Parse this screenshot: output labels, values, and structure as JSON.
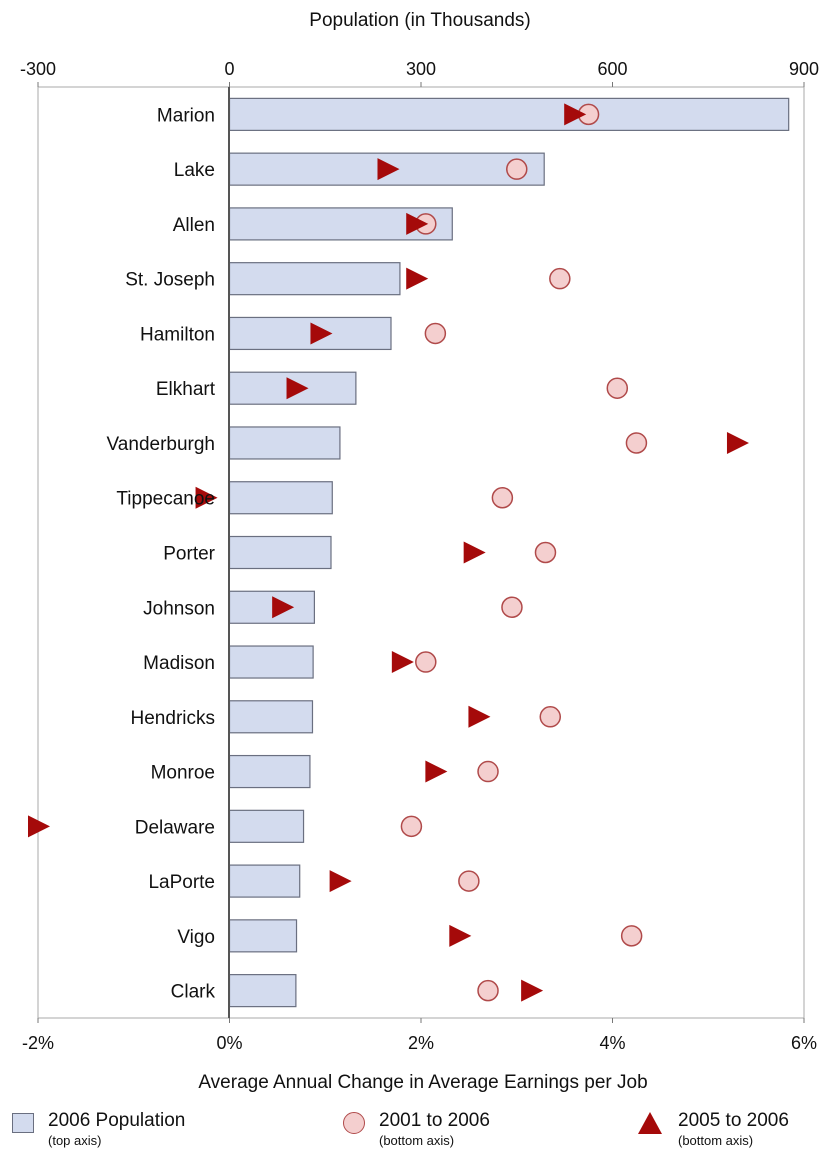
{
  "chart_data": {
    "type": "bar",
    "top_axis": {
      "label": "Population (in Thousands)",
      "range": [
        -300,
        900
      ],
      "ticks": [
        "-300",
        "0",
        "300",
        "600",
        "900"
      ]
    },
    "bottom_axis": {
      "label": "Average Annual Change in Average Earnings per Job",
      "range": [
        -2,
        6
      ],
      "ticks": [
        "-2%",
        "0%",
        "2%",
        "4%",
        "6%"
      ]
    },
    "categories": [
      "Marion",
      "Lake",
      "Allen",
      "St. Joseph",
      "Hamilton",
      "Elkhart",
      "Vanderburgh",
      "Tippecanoe",
      "Porter",
      "Johnson",
      "Madison",
      "Hendricks",
      "Monroe",
      "Delaware",
      "LaPorte",
      "Vigo",
      "Clark"
    ],
    "series": [
      {
        "name": "2006 Population",
        "axis": "top",
        "type": "bar",
        "values": [
          876,
          493,
          349,
          267,
          253,
          198,
          173,
          161,
          159,
          133,
          131,
          130,
          126,
          116,
          110,
          105,
          104
        ]
      },
      {
        "name": "2001 to 2006",
        "axis": "bottom",
        "type": "circle",
        "values": [
          3.75,
          3.0,
          2.05,
          3.45,
          2.15,
          4.05,
          4.25,
          2.85,
          3.3,
          2.95,
          2.05,
          3.35,
          2.7,
          1.9,
          2.5,
          4.2,
          2.7
        ]
      },
      {
        "name": "2005 to 2006",
        "axis": "bottom",
        "type": "triangle",
        "values": [
          3.6,
          1.65,
          1.95,
          1.95,
          0.95,
          0.7,
          5.3,
          -0.25,
          2.55,
          0.55,
          1.8,
          2.6,
          2.15,
          -2.0,
          1.15,
          2.4,
          3.15
        ]
      }
    ],
    "legend": [
      {
        "label": "2006 Population",
        "sub": "(top axis)",
        "marker": "bar"
      },
      {
        "label": "2001 to 2006",
        "sub": "(bottom axis)",
        "marker": "circle"
      },
      {
        "label": "2005 to 2006",
        "sub": "(bottom axis)",
        "marker": "triangle"
      }
    ],
    "colors": {
      "bar_fill": "#d3dbee",
      "bar_stroke": "#6a6f80",
      "circle_fill": "#f4cfcf",
      "circle_stroke": "#b04a4a",
      "triangle_fill": "#a50a0a"
    },
    "grid": false,
    "legend_position": "bottom"
  }
}
